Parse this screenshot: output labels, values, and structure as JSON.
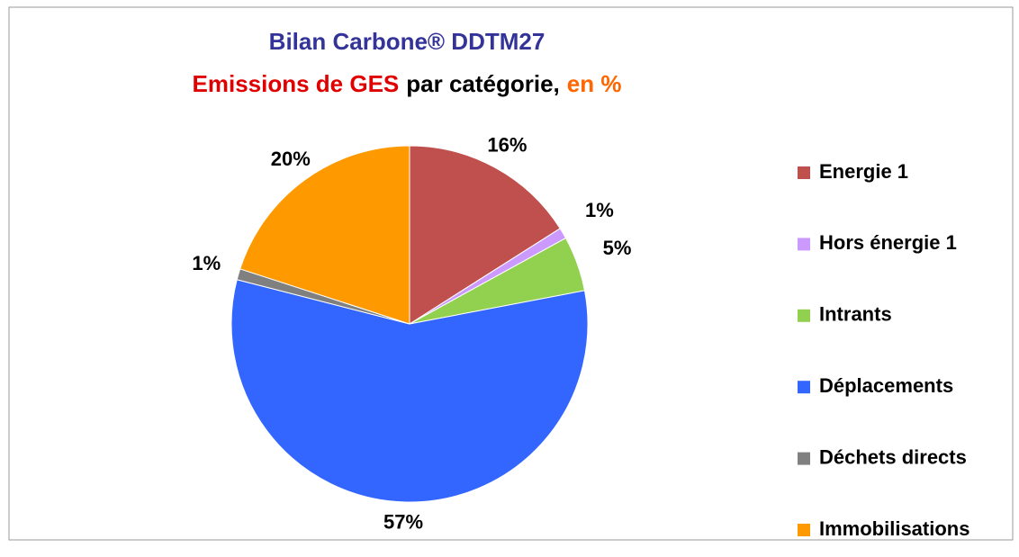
{
  "chart_data": {
    "type": "pie",
    "title": "Bilan Carbone® DDTM27",
    "subtitle": [
      {
        "text": "Emissions de GES",
        "color": "#e00000"
      },
      {
        "text": "par catégorie,",
        "color": "#000000"
      },
      {
        "text": "en %",
        "color": "#ff6600"
      }
    ],
    "title_color": "#333399",
    "categories": [
      "Energie 1",
      "Hors énergie 1",
      "Intrants",
      "Déplacements",
      "Déchets directs",
      "Immobilisations"
    ],
    "values": [
      16,
      1,
      5,
      57,
      1,
      20
    ],
    "value_labels": [
      "16%",
      "1%",
      "5%",
      "57%",
      "1%",
      "20%"
    ],
    "colors": [
      "#c0504d",
      "#cc99ff",
      "#92d050",
      "#3366ff",
      "#808080",
      "#ff9900"
    ],
    "legend": "right"
  }
}
